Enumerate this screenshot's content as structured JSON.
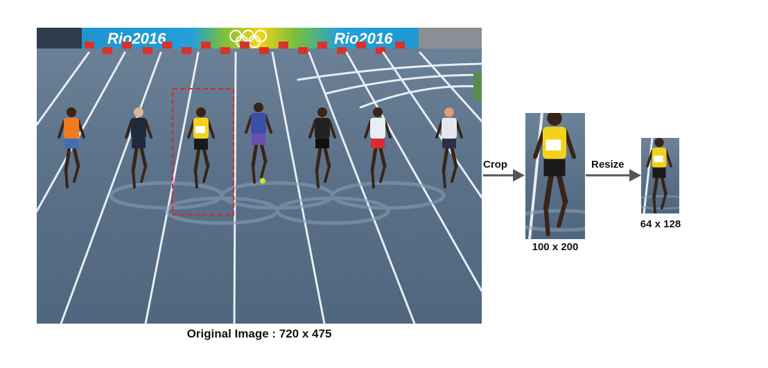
{
  "original": {
    "caption": "Original Image : 720 x 475",
    "banner_text": [
      "Rio2016",
      "Rio2016"
    ],
    "crop_box_color": "#e02424"
  },
  "steps": {
    "crop_label": "Crop",
    "resize_label": "Resize",
    "arrow_color": "#555555"
  },
  "cropped": {
    "caption": "100 x 200"
  },
  "resized": {
    "caption": "64 x 128"
  },
  "colors": {
    "track": "#5a7189",
    "lane_line": "#e8eef4",
    "banner_blue": "#1e8fc9",
    "banner_green": "#7bbf3a",
    "banner_yellow": "#f2d31b",
    "jamaica_yellow": "#f3d21c"
  }
}
